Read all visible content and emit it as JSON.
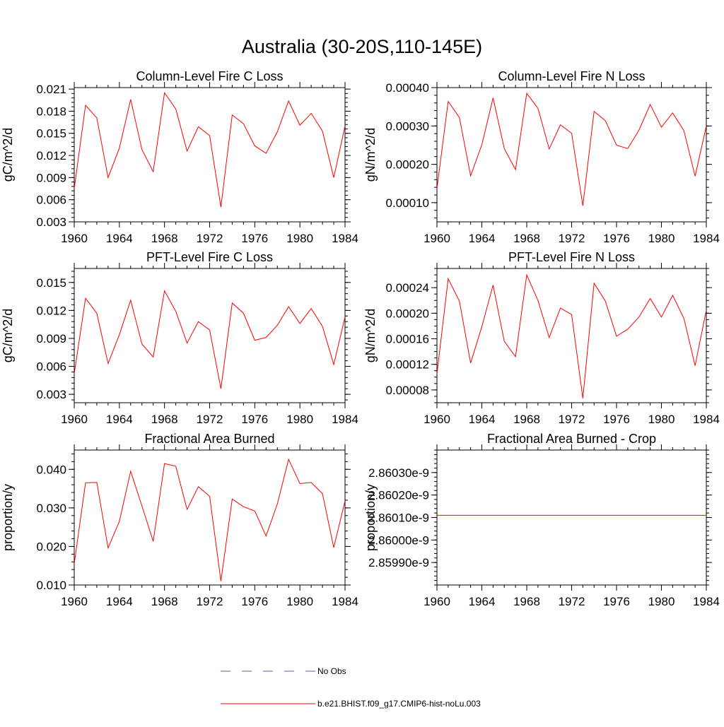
{
  "figure": {
    "title": "Australia (30-20S,110-145E)"
  },
  "colors": {
    "series": "#ff0000",
    "obs": "#5a5aa8",
    "axis": "#000000",
    "background": "#ffffff"
  },
  "legend": {
    "placement": "bottom-center",
    "items": [
      {
        "label": "No Obs",
        "style": "dashed",
        "color": "#5a5aa8"
      },
      {
        "label": "b.e21.BHIST.f09_g17.CMIP6-hist-noLu.003",
        "style": "solid",
        "color": "#ff0000"
      }
    ]
  },
  "chart_data": [
    {
      "type": "line",
      "title": "Column-Level Fire C Loss",
      "xlabel": "",
      "ylabel": "gC/m^2/d",
      "xlim": [
        1960,
        1984
      ],
      "ylim": [
        0.003,
        0.0212
      ],
      "xticks": [
        "1960",
        "1964",
        "1968",
        "1972",
        "1976",
        "1980",
        "1984"
      ],
      "yticks": [
        {
          "v": 0.003,
          "label": "0.003"
        },
        {
          "v": 0.006,
          "label": "0.006"
        },
        {
          "v": 0.009,
          "label": "0.009"
        },
        {
          "v": 0.012,
          "label": "0.012"
        },
        {
          "v": 0.015,
          "label": "0.015"
        },
        {
          "v": 0.018,
          "label": "0.018"
        },
        {
          "v": 0.021,
          "label": "0.021"
        }
      ],
      "yminor": 0.0006,
      "x": [
        1960,
        1961,
        1962,
        1963,
        1964,
        1965,
        1966,
        1967,
        1968,
        1969,
        1970,
        1971,
        1972,
        1973,
        1974,
        1975,
        1976,
        1977,
        1978,
        1979,
        1980,
        1981,
        1982,
        1983,
        1984
      ],
      "values": [
        0.0075,
        0.0188,
        0.0171,
        0.009,
        0.013,
        0.0196,
        0.0128,
        0.0098,
        0.0205,
        0.0183,
        0.0126,
        0.0159,
        0.0147,
        0.005,
        0.0175,
        0.0163,
        0.0133,
        0.0123,
        0.0152,
        0.0194,
        0.0161,
        0.0177,
        0.0153,
        0.009,
        0.016
      ]
    },
    {
      "type": "line",
      "title": "Column-Level Fire N Loss",
      "xlabel": "",
      "ylabel": "gN/m^2/d",
      "xlim": [
        1960,
        1984
      ],
      "ylim": [
        5e-05,
        0.0004
      ],
      "xticks": [
        "1960",
        "1964",
        "1968",
        "1972",
        "1976",
        "1980",
        "1984"
      ],
      "yticks": [
        {
          "v": 0.0001,
          "label": "0.00010"
        },
        {
          "v": 0.0002,
          "label": "0.00020"
        },
        {
          "v": 0.0003,
          "label": "0.00030"
        },
        {
          "v": 0.0004,
          "label": "0.00040"
        }
      ],
      "yminor": 2e-05,
      "x": [
        1960,
        1961,
        1962,
        1963,
        1964,
        1965,
        1966,
        1967,
        1968,
        1969,
        1970,
        1971,
        1972,
        1973,
        1974,
        1975,
        1976,
        1977,
        1978,
        1979,
        1980,
        1981,
        1982,
        1983,
        1984
      ],
      "values": [
        0.000137,
        0.000364,
        0.000322,
        0.00017,
        0.000251,
        0.000373,
        0.000241,
        0.000186,
        0.000385,
        0.000346,
        0.00024,
        0.000303,
        0.000281,
        9.2e-05,
        0.000338,
        0.000314,
        0.00025,
        0.000241,
        0.000289,
        0.000356,
        0.000297,
        0.000334,
        0.000288,
        0.000169,
        0.0003
      ]
    },
    {
      "type": "line",
      "title": "PFT-Level Fire C Loss",
      "xlabel": "",
      "ylabel": "gC/m^2/d",
      "xlim": [
        1960,
        1984
      ],
      "ylim": [
        0.0021,
        0.0165
      ],
      "xticks": [
        "1960",
        "1964",
        "1968",
        "1972",
        "1976",
        "1980",
        "1984"
      ],
      "yticks": [
        {
          "v": 0.003,
          "label": "0.003"
        },
        {
          "v": 0.006,
          "label": "0.006"
        },
        {
          "v": 0.009,
          "label": "0.009"
        },
        {
          "v": 0.012,
          "label": "0.012"
        },
        {
          "v": 0.015,
          "label": "0.015"
        }
      ],
      "yminor": 0.0006,
      "x": [
        1960,
        1961,
        1962,
        1963,
        1964,
        1965,
        1966,
        1967,
        1968,
        1969,
        1970,
        1971,
        1972,
        1973,
        1974,
        1975,
        1976,
        1977,
        1978,
        1979,
        1980,
        1981,
        1982,
        1983,
        1984
      ],
      "values": [
        0.0052,
        0.0133,
        0.0117,
        0.0063,
        0.0094,
        0.0131,
        0.0084,
        0.007,
        0.0141,
        0.0119,
        0.0085,
        0.0108,
        0.0099,
        0.0036,
        0.0128,
        0.0117,
        0.0088,
        0.0091,
        0.0104,
        0.0124,
        0.0106,
        0.0122,
        0.0103,
        0.0062,
        0.0113
      ]
    },
    {
      "type": "line",
      "title": "PFT-Level Fire N Loss",
      "xlabel": "",
      "ylabel": "gN/m^2/d",
      "xlim": [
        1960,
        1984
      ],
      "ylim": [
        6e-05,
        0.00027
      ],
      "xticks": [
        "1960",
        "1964",
        "1968",
        "1972",
        "1976",
        "1980",
        "1984"
      ],
      "yticks": [
        {
          "v": 8e-05,
          "label": "0.00008"
        },
        {
          "v": 0.00012,
          "label": "0.00012"
        },
        {
          "v": 0.00016,
          "label": "0.00016"
        },
        {
          "v": 0.0002,
          "label": "0.00020"
        },
        {
          "v": 0.00024,
          "label": "0.00024"
        }
      ],
      "yminor": 1e-05,
      "x": [
        1960,
        1961,
        1962,
        1963,
        1964,
        1965,
        1966,
        1967,
        1968,
        1969,
        1970,
        1971,
        1972,
        1973,
        1974,
        1975,
        1976,
        1977,
        1978,
        1979,
        1980,
        1981,
        1982,
        1983,
        1984
      ],
      "values": [
        0.000105,
        0.000254,
        0.000219,
        0.000122,
        0.000179,
        0.000244,
        0.000156,
        0.000132,
        0.00026,
        0.00022,
        0.000162,
        0.000208,
        0.000198,
        6.7e-05,
        0.000247,
        0.000219,
        0.000164,
        0.000175,
        0.000194,
        0.000223,
        0.000194,
        0.000228,
        0.000192,
        0.000118,
        0.000205
      ]
    },
    {
      "type": "line",
      "title": "Fractional Area Burned",
      "xlabel": "",
      "ylabel": "proportion/y",
      "xlim": [
        1960,
        1984
      ],
      "ylim": [
        0.01,
        0.045
      ],
      "xticks": [
        "1960",
        "1964",
        "1968",
        "1972",
        "1976",
        "1980",
        "1984"
      ],
      "yticks": [
        {
          "v": 0.01,
          "label": "0.010"
        },
        {
          "v": 0.02,
          "label": "0.020"
        },
        {
          "v": 0.03,
          "label": "0.030"
        },
        {
          "v": 0.04,
          "label": "0.040"
        }
      ],
      "yminor": 0.002,
      "x": [
        1960,
        1961,
        1962,
        1963,
        1964,
        1965,
        1966,
        1967,
        1968,
        1969,
        1970,
        1971,
        1972,
        1973,
        1974,
        1975,
        1976,
        1977,
        1978,
        1979,
        1980,
        1981,
        1982,
        1983,
        1984
      ],
      "values": [
        0.0155,
        0.0365,
        0.0366,
        0.0196,
        0.0265,
        0.0395,
        0.0305,
        0.0213,
        0.0415,
        0.0408,
        0.0296,
        0.0355,
        0.033,
        0.011,
        0.0323,
        0.0303,
        0.0292,
        0.0227,
        0.031,
        0.0426,
        0.0363,
        0.0366,
        0.0337,
        0.0197,
        0.0318
      ]
    },
    {
      "type": "line",
      "title": "Fractional Area Burned - Crop",
      "xlabel": "",
      "ylabel": "proportion/y",
      "xlim": [
        1960,
        1984
      ],
      "ylim": [
        2.8598e-09,
        2.8604e-09
      ],
      "xticks": [
        "1960",
        "1964",
        "1968",
        "1972",
        "1976",
        "1980",
        "1984"
      ],
      "yticks": [
        {
          "v": 2.8599e-09,
          "label": "2.85990e-9"
        },
        {
          "v": 2.86e-09,
          "label": "2.86000e-9"
        },
        {
          "v": 2.8601e-09,
          "label": "2.86010e-9"
        },
        {
          "v": 2.8602e-09,
          "label": "2.86020e-9"
        },
        {
          "v": 2.8603e-09,
          "label": "2.86030e-9"
        }
      ],
      "yminor": 2e-14,
      "x": [
        1960,
        1984
      ],
      "values": [
        2.86011e-09,
        2.86011e-09
      ]
    }
  ]
}
